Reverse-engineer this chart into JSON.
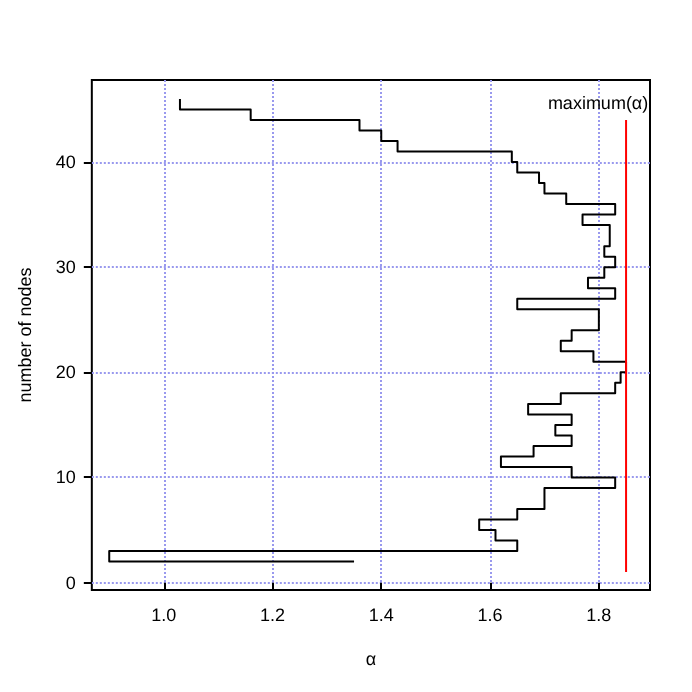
{
  "chart_data": {
    "type": "line",
    "xlabel": "α",
    "ylabel": "number of nodes",
    "xlim": [
      0.868,
      1.894
    ],
    "xticks": [
      {
        "value": 1.0,
        "label": "1.0"
      },
      {
        "value": 1.2,
        "label": "1.2"
      },
      {
        "value": 1.4,
        "label": "1.4"
      },
      {
        "value": 1.6,
        "label": "1.6"
      },
      {
        "value": 1.8,
        "label": "1.8"
      }
    ],
    "ylim": [
      -0.7,
      47.8
    ],
    "yticks": [
      0,
      10,
      20,
      30,
      40
    ],
    "grid": true,
    "legend": false,
    "marker": "none",
    "line_style": "solid",
    "series": [
      {
        "color": "#000000",
        "x": [
          1.35,
          0.9,
          0.9,
          1.65,
          1.65,
          1.61,
          1.61,
          1.58,
          1.58,
          1.65,
          1.65,
          1.7,
          1.7,
          1.83,
          1.83,
          1.75,
          1.75,
          1.62,
          1.62,
          1.68,
          1.68,
          1.75,
          1.75,
          1.72,
          1.72,
          1.75,
          1.75,
          1.67,
          1.67,
          1.73,
          1.73,
          1.83,
          1.83,
          1.84,
          1.84,
          1.85,
          1.85,
          1.79,
          1.79,
          1.73,
          1.73,
          1.75,
          1.75,
          1.8,
          1.8,
          1.65,
          1.65,
          1.83,
          1.83,
          1.78,
          1.78,
          1.81,
          1.81,
          1.83,
          1.83,
          1.81,
          1.81,
          1.82,
          1.82,
          1.77,
          1.77,
          1.83,
          1.83,
          1.74,
          1.74,
          1.7,
          1.7,
          1.69,
          1.69,
          1.65,
          1.65,
          1.64,
          1.64,
          1.43,
          1.43,
          1.4,
          1.4,
          1.36,
          1.36,
          1.16,
          1.16,
          1.03,
          1.03
        ],
        "values": [
          2,
          2,
          3,
          3,
          4,
          4,
          5,
          5,
          6,
          6,
          7,
          7,
          9,
          9,
          10,
          10,
          11,
          11,
          12,
          12,
          13,
          13,
          14,
          14,
          15,
          15,
          16,
          16,
          17,
          17,
          18,
          18,
          19,
          19,
          20,
          20,
          21,
          21,
          22,
          22,
          23,
          23,
          24,
          24,
          26,
          26,
          27,
          27,
          28,
          28,
          29,
          29,
          30,
          30,
          31,
          31,
          32,
          32,
          34,
          34,
          35,
          35,
          36,
          36,
          37,
          37,
          38,
          38,
          39,
          39,
          40,
          40,
          41,
          41,
          42,
          42,
          43,
          43,
          44,
          44,
          45,
          45,
          46
        ]
      },
      {
        "name": "maximum(α)",
        "color": "#ff0000",
        "x": [
          1.85,
          1.85
        ],
        "values": [
          1,
          44
        ]
      }
    ]
  }
}
